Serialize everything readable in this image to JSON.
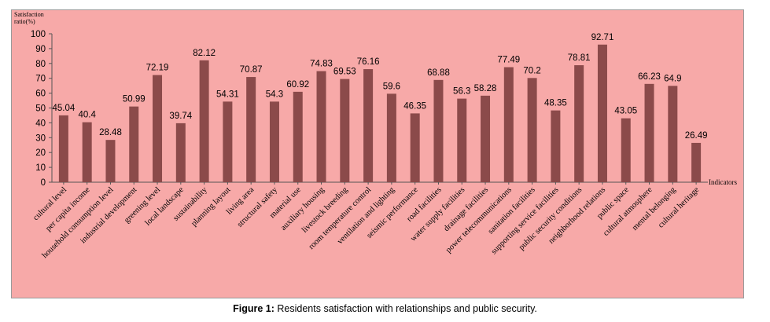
{
  "caption": {
    "label": "Figure 1:",
    "text": "Residents satisfaction with relationships and public security."
  },
  "colors": {
    "background": "#f7a9a8",
    "bar": "#8b4a4a",
    "axis": "#555555"
  },
  "chart_data": {
    "type": "bar",
    "title": "",
    "ylabel": [
      "Satisfaction",
      "ratio(%)"
    ],
    "xlabel": "Indicators",
    "ylim": [
      0,
      100
    ],
    "yticks": [
      0,
      10,
      20,
      30,
      40,
      50,
      60,
      70,
      80,
      90,
      100
    ],
    "grid": false,
    "legend": "none",
    "categories": [
      "cultural level",
      "per capita income",
      "household consumption level",
      "industrial development",
      "greening level",
      "local landscape",
      "sustainability",
      "planning layout",
      "living area",
      "structural safety",
      "material use",
      "auxiliary housing",
      "livestock breeding",
      "room temperature control",
      "ventilation and lighting",
      "seismic performance",
      "road facilities",
      "water supply facilities",
      "drainage facilities",
      "power telecommunications",
      "sanitation facilities",
      "supporting service facilities",
      "public security conditions",
      "neighborhood relations",
      "public space",
      "cultural atmosphere",
      "mental belonging",
      "cultural heritage"
    ],
    "values": [
      45.04,
      40.4,
      28.48,
      50.99,
      72.19,
      39.74,
      82.12,
      54.31,
      70.87,
      54.3,
      60.92,
      74.83,
      69.53,
      76.16,
      59.6,
      46.35,
      68.88,
      56.3,
      58.28,
      77.49,
      70.2,
      48.35,
      78.81,
      92.71,
      43.05,
      66.23,
      64.9,
      26.49
    ],
    "labels": [
      "45.04",
      "40.4",
      "28.48",
      "50.99",
      "72.19",
      "39.74",
      "82.12",
      "54.31",
      "70.87",
      "54.3",
      "60.92",
      "74.83",
      "69.53",
      "76.16",
      "59.6",
      "46.35",
      "68.88",
      "56.3",
      "58.28",
      "77.49",
      "70.2",
      "48.35",
      "78.81",
      "92.71",
      "43.05",
      "66.23",
      "64.9",
      "26.49"
    ]
  }
}
